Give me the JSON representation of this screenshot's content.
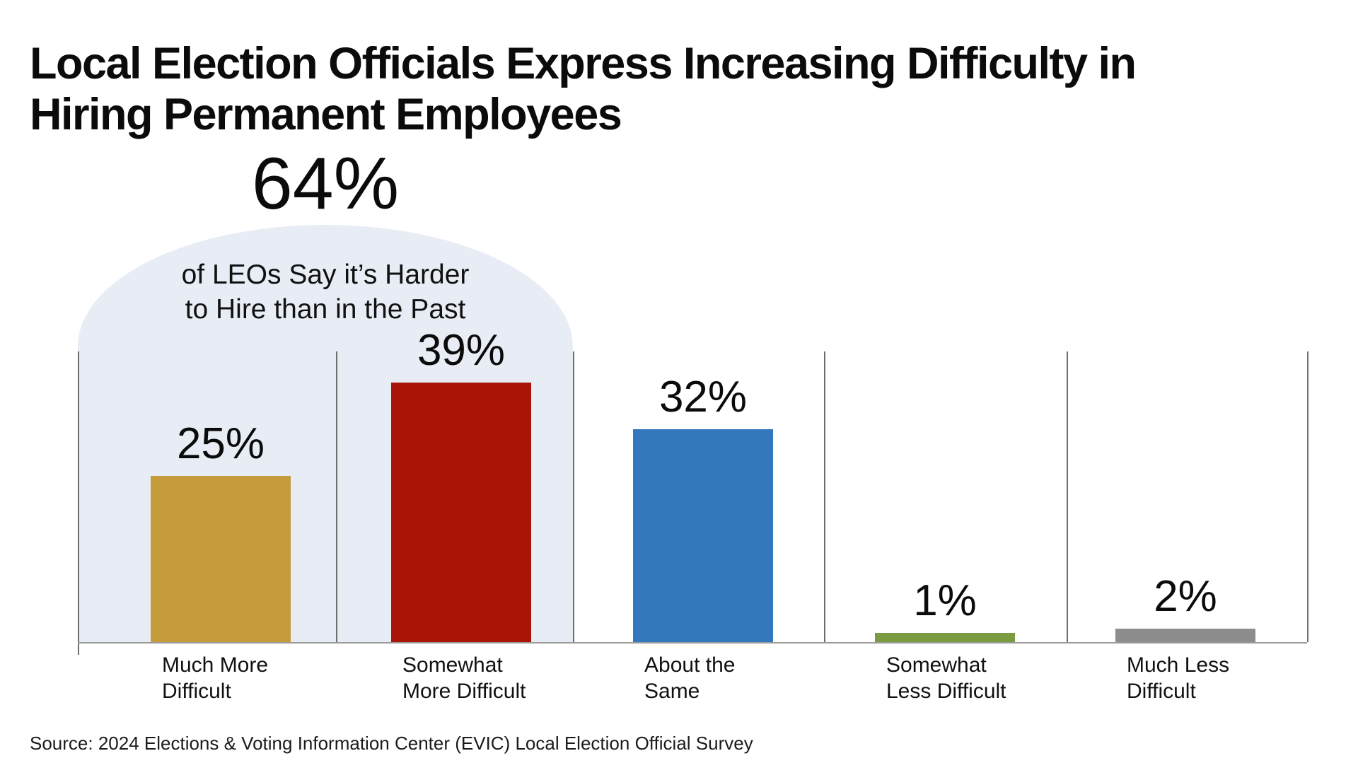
{
  "title": {
    "line1": "Local Election Officials Express Increasing Difficulty in",
    "line2": "Hiring Permanent Employees"
  },
  "callout": {
    "value": "64%",
    "line1": "of LEOs Say it’s Harder",
    "line2": "to Hire than in the Past",
    "highlight_color": "#E8EDF5"
  },
  "source": "Source: 2024 Elections & Voting Information Center (EVIC) Local Election Official Survey",
  "chart_data": {
    "type": "bar",
    "title": "Local Election Officials Express Increasing Difficulty in Hiring Permanent Employees",
    "categories": [
      "Much More Difficult",
      "Somewhat More Difficult",
      "About the Same",
      "Somewhat Less Difficult",
      "Much Less Difficult"
    ],
    "category_label_lines": [
      [
        "Much More",
        "Difficult"
      ],
      [
        "Somewhat",
        "More Difficult"
      ],
      [
        "About the",
        "Same"
      ],
      [
        "Somewhat",
        "Less Difficult"
      ],
      [
        "Much Less",
        "Difficult"
      ]
    ],
    "values": [
      25,
      39,
      32,
      1,
      2
    ],
    "data_labels": [
      "25%",
      "39%",
      "32%",
      "1%",
      "2%"
    ],
    "bar_colors": [
      "#C59B3C",
      "#A91409",
      "#3377BD",
      "#7A9B3F",
      "#8D8D8D"
    ],
    "ylabel": "",
    "xlabel": "",
    "ylim": [
      0,
      45
    ],
    "grid": "category-divider-lines",
    "legend": "none",
    "annotation": {
      "value": "64%",
      "text": "of LEOs Say it’s Harder to Hire than in the Past",
      "covers_categories": [
        "Much More Difficult",
        "Somewhat More Difficult"
      ]
    }
  }
}
